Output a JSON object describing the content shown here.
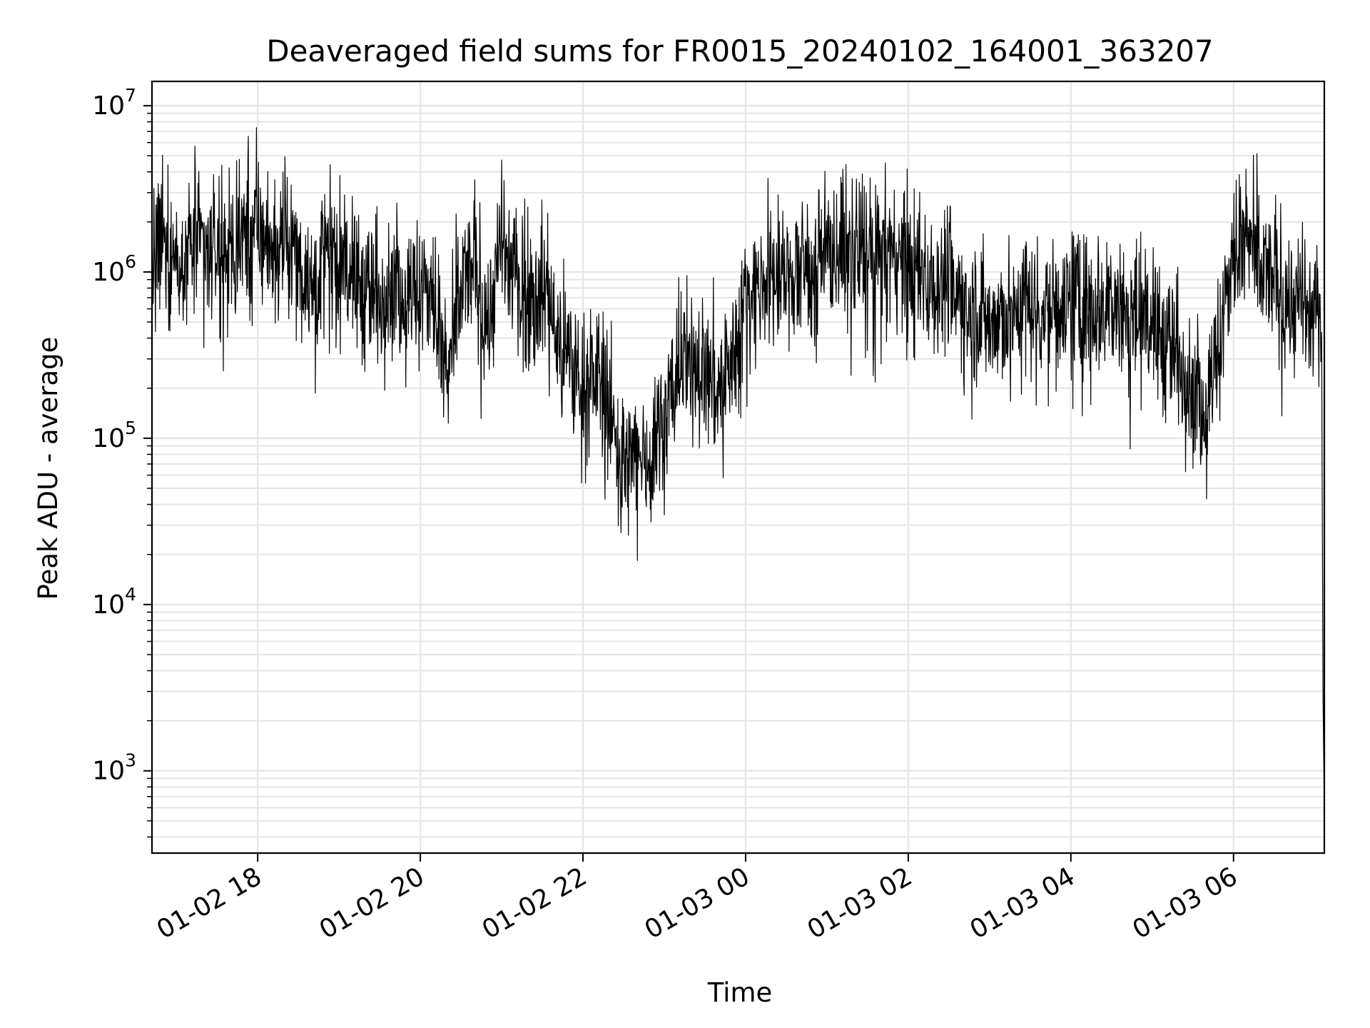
{
  "chart_data": {
    "type": "line",
    "title": "Deaveraged field sums for FR0015_20240102_164001_363207",
    "xlabel": "Time",
    "ylabel": "Peak ADU - average",
    "yscale": "log",
    "ylim": [
      320,
      14000000
    ],
    "xlim": [
      "2024-01-02 16:42",
      "2024-01-03 07:07"
    ],
    "grid": true,
    "line_color": "#000000",
    "grid_color": "#e5e5e5",
    "x_ticks": [
      {
        "value": "2024-01-02 18:00",
        "label": "01-02 18"
      },
      {
        "value": "2024-01-02 20:00",
        "label": "01-02 20"
      },
      {
        "value": "2024-01-02 22:00",
        "label": "01-02 22"
      },
      {
        "value": "2024-01-03 00:00",
        "label": "01-03 00"
      },
      {
        "value": "2024-01-03 02:00",
        "label": "01-03 02"
      },
      {
        "value": "2024-01-03 04:00",
        "label": "01-03 04"
      },
      {
        "value": "2024-01-03 06:00",
        "label": "01-03 06"
      }
    ],
    "y_ticks": [
      {
        "value": 1000,
        "base": "10",
        "exp": "3"
      },
      {
        "value": 10000,
        "base": "10",
        "exp": "4"
      },
      {
        "value": 100000,
        "base": "10",
        "exp": "5"
      },
      {
        "value": 1000000,
        "base": "10",
        "exp": "6"
      },
      {
        "value": 10000000,
        "base": "10",
        "exp": "7"
      }
    ],
    "series": [
      {
        "x": [
          "2024-01-02 16:42",
          "2024-01-02 16:50",
          "2024-01-02 17:00",
          "2024-01-02 17:10",
          "2024-01-02 17:20",
          "2024-01-02 17:30",
          "2024-01-02 17:40",
          "2024-01-02 17:50",
          "2024-01-02 18:00",
          "2024-01-02 18:10",
          "2024-01-02 18:20",
          "2024-01-02 18:30",
          "2024-01-02 18:40",
          "2024-01-02 18:50",
          "2024-01-02 19:00",
          "2024-01-02 19:10",
          "2024-01-02 19:20",
          "2024-01-02 19:30",
          "2024-01-02 19:40",
          "2024-01-02 19:50",
          "2024-01-02 20:00",
          "2024-01-02 20:10",
          "2024-01-02 20:20",
          "2024-01-02 20:30",
          "2024-01-02 20:40",
          "2024-01-02 20:50",
          "2024-01-02 21:00",
          "2024-01-02 21:10",
          "2024-01-02 21:20",
          "2024-01-02 21:30",
          "2024-01-02 21:40",
          "2024-01-02 21:50",
          "2024-01-02 22:00",
          "2024-01-02 22:10",
          "2024-01-02 22:20",
          "2024-01-02 22:30",
          "2024-01-02 22:40",
          "2024-01-02 22:50",
          "2024-01-02 23:00",
          "2024-01-02 23:10",
          "2024-01-02 23:20",
          "2024-01-02 23:30",
          "2024-01-02 23:40",
          "2024-01-02 23:50",
          "2024-01-03 00:00",
          "2024-01-03 00:10",
          "2024-01-03 00:20",
          "2024-01-03 00:30",
          "2024-01-03 00:40",
          "2024-01-03 00:50",
          "2024-01-03 01:00",
          "2024-01-03 01:10",
          "2024-01-03 01:20",
          "2024-01-03 01:30",
          "2024-01-03 01:40",
          "2024-01-03 01:50",
          "2024-01-03 02:00",
          "2024-01-03 02:10",
          "2024-01-03 02:20",
          "2024-01-03 02:30",
          "2024-01-03 02:40",
          "2024-01-03 02:50",
          "2024-01-03 03:00",
          "2024-01-03 03:10",
          "2024-01-03 03:20",
          "2024-01-03 03:30",
          "2024-01-03 03:40",
          "2024-01-03 03:50",
          "2024-01-03 04:00",
          "2024-01-03 04:10",
          "2024-01-03 04:20",
          "2024-01-03 04:30",
          "2024-01-03 04:40",
          "2024-01-03 04:50",
          "2024-01-03 05:00",
          "2024-01-03 05:10",
          "2024-01-03 05:20",
          "2024-01-03 05:30",
          "2024-01-03 05:40",
          "2024-01-03 05:50",
          "2024-01-03 06:00",
          "2024-01-03 06:10",
          "2024-01-03 06:20",
          "2024-01-03 06:30",
          "2024-01-03 06:40",
          "2024-01-03 06:50",
          "2024-01-03 07:00",
          "2024-01-03 07:05",
          "2024-01-03 07:07"
        ],
        "values": [
          900000,
          1600000,
          1200000,
          1500000,
          1300000,
          1400000,
          1000000,
          1800000,
          1700000,
          1500000,
          1400000,
          1200000,
          900000,
          1300000,
          1100000,
          1000000,
          800000,
          700000,
          900000,
          700000,
          800000,
          700000,
          200000,
          800000,
          1100000,
          500000,
          1400000,
          900000,
          700000,
          900000,
          400000,
          300000,
          200000,
          250000,
          150000,
          60000,
          80000,
          80000,
          150000,
          250000,
          300000,
          250000,
          200000,
          300000,
          700000,
          800000,
          900000,
          900000,
          1000000,
          1100000,
          1300000,
          1400000,
          1300000,
          1300000,
          1200000,
          1300000,
          1100000,
          1000000,
          900000,
          800000,
          700000,
          600000,
          500000,
          500000,
          600000,
          700000,
          600000,
          600000,
          700000,
          600000,
          700000,
          700000,
          600000,
          500000,
          500000,
          400000,
          300000,
          200000,
          150000,
          400000,
          1300000,
          1500000,
          1000000,
          900000,
          700000,
          600000,
          500000,
          600000,
          550
        ]
      }
    ]
  }
}
